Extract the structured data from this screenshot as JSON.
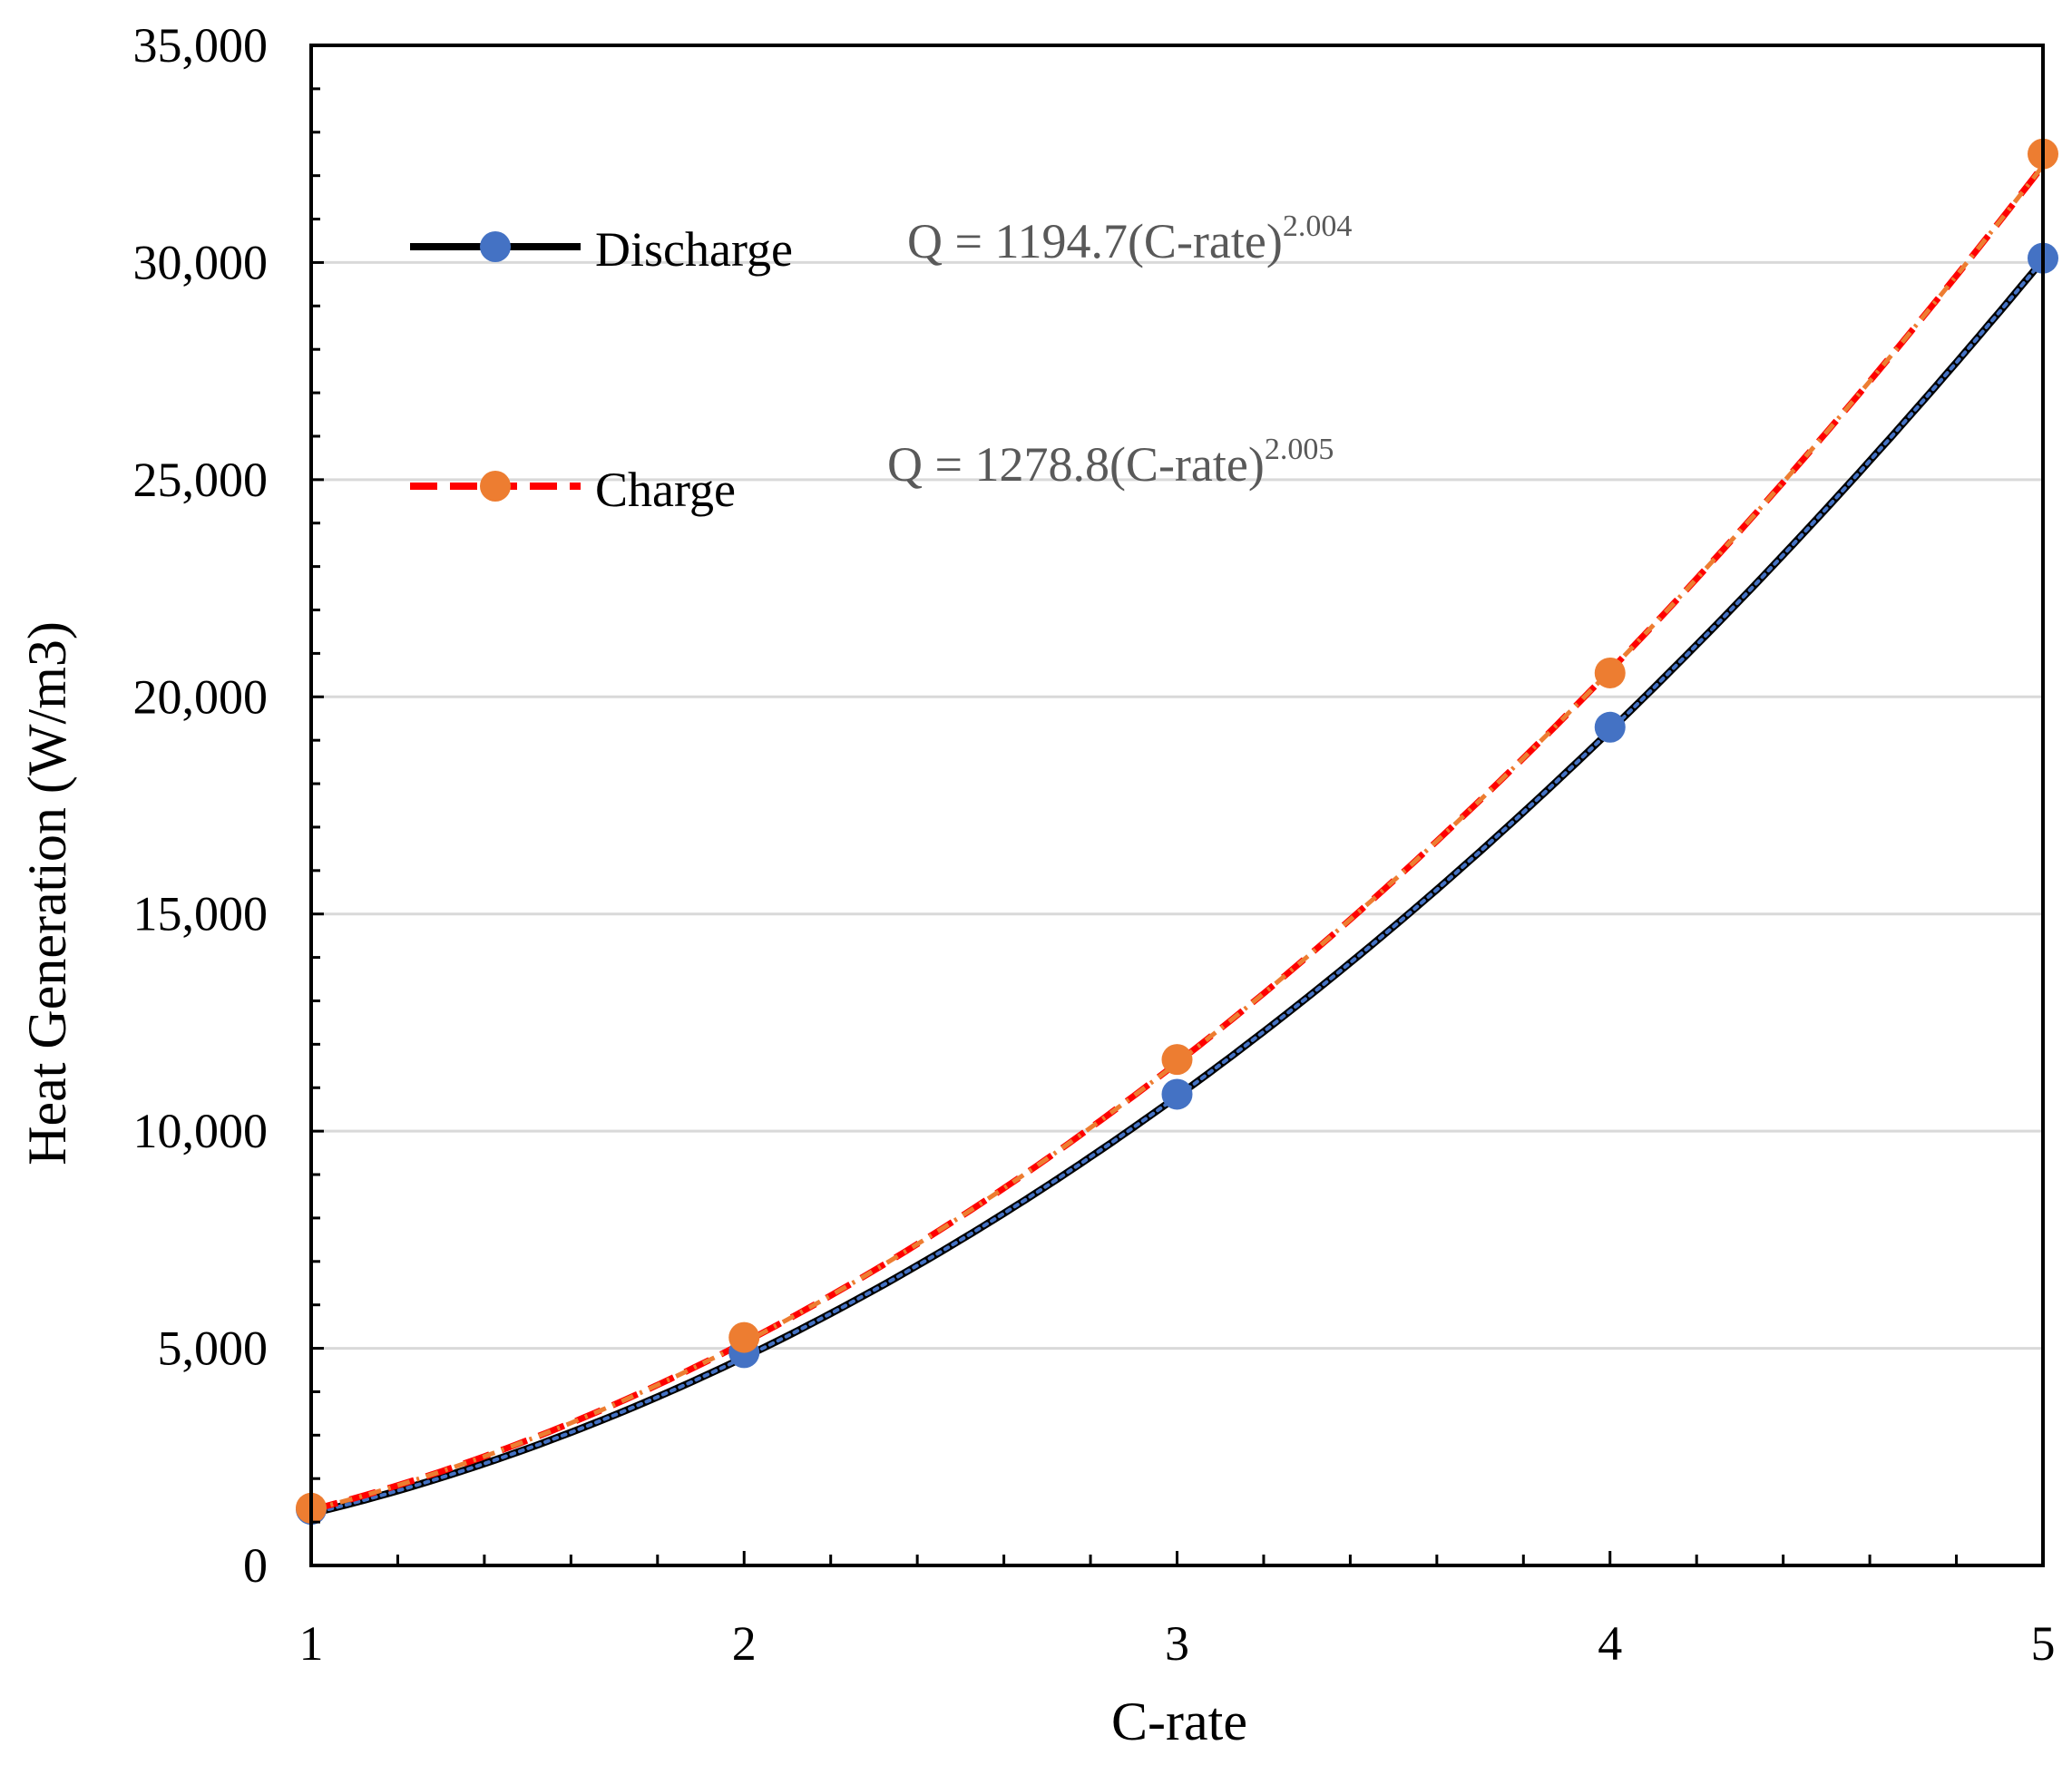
{
  "colors": {
    "discharge_marker": "#4472C4",
    "discharge_line": "#000000",
    "charge_marker": "#ED7D31",
    "charge_line": "#FF0000",
    "grid": "#D9D9D9"
  },
  "chart_data": {
    "type": "scatter",
    "title": "",
    "xlabel": "C-rate",
    "ylabel": "Heat Generation (W/m3)",
    "xlim": [
      1,
      5
    ],
    "ylim": [
      0,
      35000
    ],
    "x_ticks": [
      1,
      2,
      3,
      4,
      5
    ],
    "x_tick_labels": [
      "1",
      "2",
      "3",
      "4",
      "5"
    ],
    "y_ticks": [
      0,
      5000,
      10000,
      15000,
      20000,
      25000,
      30000,
      35000
    ],
    "y_tick_labels": [
      "0",
      "5,000",
      "10,000",
      "15,000",
      "20,000",
      "25,000",
      "30,000",
      "35,000"
    ],
    "grid": true,
    "legend_position": "upper-left",
    "series": [
      {
        "name": "Discharge",
        "x": [
          1,
          2,
          3,
          4,
          5
        ],
        "values": [
          1290,
          4900,
          10850,
          19300,
          30100
        ],
        "trendline": {
          "a": 1194.7,
          "b": 2.004
        },
        "equation_main": "Q = 1194.7(C-rate)",
        "equation_exp": "2.004"
      },
      {
        "name": "Charge",
        "x": [
          1,
          2,
          3,
          4,
          5
        ],
        "values": [
          1320,
          5250,
          11650,
          20550,
          32500
        ],
        "trendline": {
          "a": 1278.8,
          "b": 2.005
        },
        "equation_main": "Q = 1278.8(C-rate)",
        "equation_exp": "2.005"
      }
    ]
  }
}
